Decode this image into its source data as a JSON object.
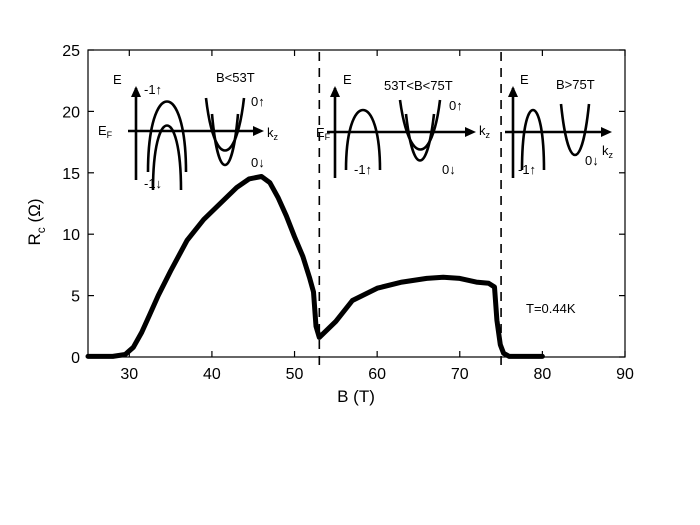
{
  "chart_data": {
    "type": "line",
    "xlabel": "B (T)",
    "ylabel_main": "R",
    "ylabel_sub": "c",
    "ylabel_unit": "(Ω)",
    "xlim": [
      25,
      90
    ],
    "ylim": [
      0,
      25
    ],
    "xticks": [
      30,
      40,
      50,
      60,
      70,
      80,
      90
    ],
    "yticks": [
      0,
      5,
      10,
      15,
      20,
      25
    ],
    "grid": false,
    "annotation": "T=0.44K",
    "vlines": [
      53,
      75
    ],
    "series": [
      {
        "x": [
          25,
          28,
          29.5,
          30.5,
          31.5,
          32.5,
          33.5,
          35,
          37,
          39,
          41,
          43,
          44.5,
          46,
          47,
          48,
          49,
          50,
          51,
          51.8,
          52.3,
          52.6,
          53,
          55,
          57,
          60,
          63,
          66,
          68,
          70,
          72,
          73.5,
          74.2,
          74.5,
          74.9,
          75.3,
          76,
          78,
          80
        ],
        "y": [
          0.05,
          0.05,
          0.2,
          0.8,
          2,
          3.5,
          5,
          7,
          9.5,
          11.2,
          12.5,
          13.8,
          14.5,
          14.7,
          14.2,
          13.0,
          11.5,
          9.8,
          8.2,
          6.5,
          5.3,
          2.5,
          1.6,
          2.9,
          4.6,
          5.6,
          6.1,
          6.4,
          6.5,
          6.4,
          6.1,
          6.0,
          5.7,
          3.0,
          1.0,
          0.3,
          0.05,
          0.05,
          0.05
        ]
      }
    ]
  },
  "insets": [
    {
      "title": "B<53T",
      "e_label": "E",
      "ef_main": "E",
      "ef_sub": "F",
      "kz_main": "k",
      "kz_sub": "z",
      "labels": [
        "-1↑",
        "-1↓",
        "0↑",
        "0↓"
      ]
    },
    {
      "title": "53T<B<75T",
      "e_label": "E",
      "ef_main": "E",
      "ef_sub": "F",
      "kz_main": "k",
      "kz_sub": "z",
      "labels": [
        "-1↑",
        "0↑",
        "0↓"
      ]
    },
    {
      "title": "B>75T",
      "e_label": "E",
      "kz_main": "k",
      "kz_sub": "z",
      "labels": [
        "-1↑",
        "0↓"
      ]
    }
  ]
}
